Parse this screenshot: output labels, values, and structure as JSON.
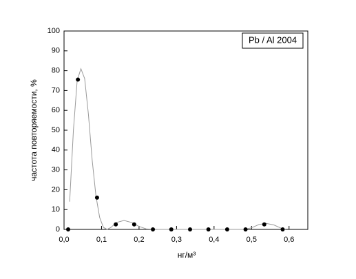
{
  "chart_data": {
    "type": "scatter",
    "x_label": "нг/м³",
    "y_label": "частота повторяемости, %",
    "annotation": "Pb / Al 2004",
    "xlim": [
      0,
      0.65
    ],
    "ylim": [
      0,
      100
    ],
    "xticks": [
      {
        "value": 0,
        "label": "0,0"
      },
      {
        "value": 0.1,
        "label": "0,1"
      },
      {
        "value": 0.2,
        "label": "0,2"
      },
      {
        "value": 0.3,
        "label": "0,3"
      },
      {
        "value": 0.4,
        "label": "0,4"
      },
      {
        "value": 0.5,
        "label": "0,5"
      },
      {
        "value": 0.6,
        "label": "0,6"
      }
    ],
    "yticks": [
      0,
      10,
      20,
      30,
      40,
      50,
      60,
      70,
      80,
      90,
      100
    ],
    "series": [
      {
        "mode": "line",
        "color": "#999999",
        "x": [
          0.015,
          0.025,
          0.035,
          0.045,
          0.055,
          0.065,
          0.075,
          0.085,
          0.095,
          0.105,
          0.115,
          0.125,
          0.14,
          0.16,
          0.18,
          0.2,
          0.22,
          0.25,
          0.3,
          0.35,
          0.4,
          0.45,
          0.48,
          0.5,
          0.52,
          0.54,
          0.56,
          0.58,
          0.59
        ],
        "values": [
          14,
          50,
          75,
          81,
          76,
          58,
          35,
          17,
          6,
          1,
          0,
          1,
          3.5,
          4.5,
          3.5,
          1.5,
          0.2,
          0,
          0,
          0,
          0,
          0,
          0,
          0.8,
          2.5,
          3,
          2.2,
          0.5,
          0
        ]
      },
      {
        "mode": "markers",
        "color": "#000000",
        "x": [
          0.011,
          0.037,
          0.088,
          0.138,
          0.187,
          0.237,
          0.286,
          0.336,
          0.385,
          0.435,
          0.484,
          0.534,
          0.583
        ],
        "values": [
          0,
          75.5,
          16,
          2.5,
          2.5,
          0,
          0,
          0,
          0,
          0,
          0,
          2.5,
          0
        ]
      }
    ]
  }
}
